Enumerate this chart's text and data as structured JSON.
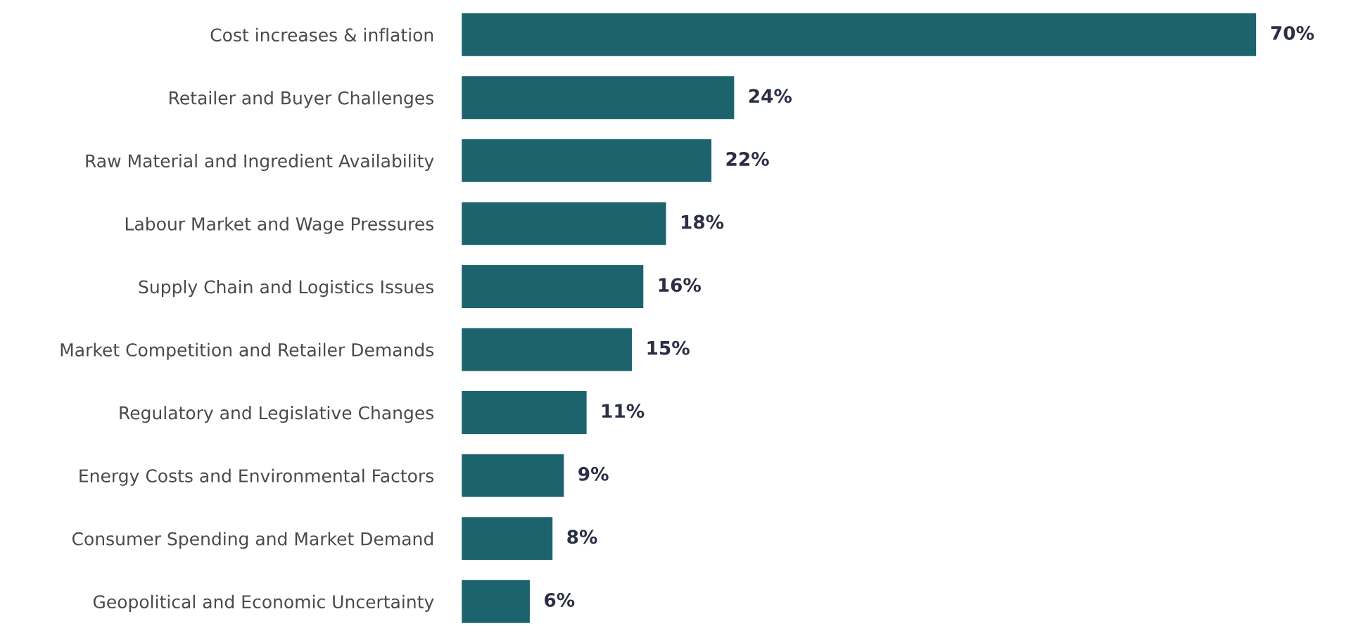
{
  "chart_data": {
    "type": "bar",
    "orientation": "horizontal",
    "categories": [
      "Cost increases & inflation",
      "Retailer and Buyer Challenges",
      "Raw Material and Ingredient Availability",
      "Labour Market and Wage Pressures",
      "Supply Chain and Logistics Issues",
      "Market Competition and Retailer Demands",
      "Regulatory and Legislative Changes",
      "Energy Costs and Environmental Factors",
      "Consumer Spending and Market Demand",
      "Geopolitical and Economic Uncertainty"
    ],
    "values": [
      70,
      24,
      22,
      18,
      16,
      15,
      11,
      9,
      8,
      6
    ],
    "value_labels": [
      "70%",
      "24%",
      "22%",
      "18%",
      "16%",
      "15%",
      "11%",
      "9%",
      "8%",
      "6%"
    ],
    "color": "#1d636e",
    "grid": false,
    "legend": false,
    "tick_labels": "y"
  }
}
